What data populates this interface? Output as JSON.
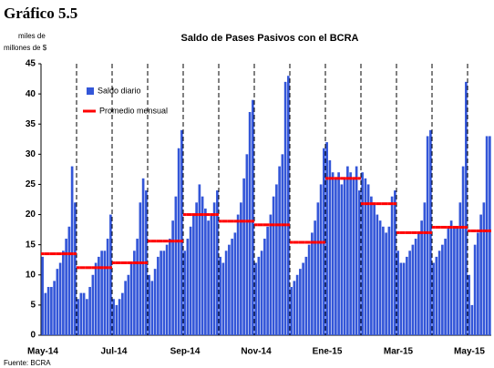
{
  "heading": "Gráfico 5.5",
  "source": "Fuente: BCRA",
  "chart_data": {
    "type": "bar",
    "title": "Saldo de Pases Pasivos con el BCRA",
    "y_label_lines": [
      "miles de",
      "millones de $"
    ],
    "categories": [
      "May-14",
      null,
      null,
      null,
      null,
      null,
      null,
      null,
      null,
      null,
      null,
      null,
      null,
      null,
      null,
      null,
      null,
      null,
      null,
      null,
      null,
      null,
      null,
      null,
      "Jul-14",
      null,
      null,
      null,
      null,
      null,
      null,
      null,
      null,
      null,
      null,
      null,
      null,
      null,
      null,
      null,
      null,
      null,
      null,
      null,
      null,
      null,
      null,
      null,
      "Sep-14",
      null,
      null,
      null,
      null,
      null,
      null,
      null,
      null,
      null,
      null,
      null,
      null,
      null,
      null,
      null,
      null,
      null,
      null,
      null,
      null,
      null,
      null,
      null,
      "Nov-14",
      null,
      null,
      null,
      null,
      null,
      null,
      null,
      null,
      null,
      null,
      null,
      null,
      null,
      null,
      null,
      null,
      null,
      null,
      null,
      null,
      null,
      null,
      null,
      "Ene-15",
      null,
      null,
      null,
      null,
      null,
      null,
      null,
      null,
      null,
      null,
      null,
      null,
      null,
      null,
      null,
      null,
      null,
      null,
      null,
      null,
      null,
      null,
      null,
      "Mar-15",
      null,
      null,
      null,
      null,
      null,
      null,
      null,
      null,
      null,
      null,
      null,
      null,
      null,
      null,
      null,
      null,
      null,
      null,
      null,
      null,
      null,
      null,
      null,
      "May-15",
      null,
      null,
      null,
      null,
      null,
      null,
      null
    ],
    "series": [
      {
        "name": "Saldo diario",
        "color": "#3356d8",
        "values": [
          13,
          7,
          8,
          8,
          9,
          11,
          12,
          14,
          16,
          18,
          28,
          22,
          6,
          7,
          7,
          6,
          8,
          10,
          12,
          13,
          14,
          14,
          16,
          20,
          6,
          5,
          6,
          7,
          9,
          10,
          12,
          14,
          16,
          22,
          26,
          24,
          10,
          9,
          11,
          13,
          14,
          14,
          15,
          16,
          19,
          23,
          31,
          34,
          14,
          16,
          18,
          20,
          22,
          25,
          23,
          21,
          19,
          20,
          22,
          24,
          13,
          12,
          14,
          15,
          16,
          17,
          20,
          22,
          26,
          30,
          37,
          39,
          12,
          13,
          14,
          16,
          18,
          20,
          23,
          25,
          28,
          30,
          42,
          43,
          8,
          9,
          10,
          11,
          12,
          13,
          15,
          17,
          19,
          22,
          25,
          31,
          32,
          29,
          27,
          26,
          27,
          25,
          26,
          28,
          27,
          26,
          28,
          24,
          27,
          26,
          25,
          23,
          22,
          20,
          19,
          18,
          17,
          18,
          23,
          24,
          14,
          12,
          12,
          13,
          14,
          15,
          16,
          17,
          19,
          22,
          33,
          34,
          12,
          13,
          14,
          15,
          16,
          18,
          19,
          18,
          18,
          22,
          28,
          42,
          10,
          5,
          15,
          17,
          20,
          22,
          33,
          33
        ]
      },
      {
        "name": "Promedio mensual",
        "color": "#ff0000",
        "type": "step",
        "values": [
          13.5,
          13.5,
          13.5,
          13.5,
          13.5,
          13.5,
          13.5,
          13.5,
          13.5,
          13.5,
          13.5,
          13.5,
          11.2,
          11.2,
          11.2,
          11.2,
          11.2,
          11.2,
          11.2,
          11.2,
          11.2,
          11.2,
          11.2,
          11.2,
          12,
          12,
          12,
          12,
          12,
          12,
          12,
          12,
          12,
          12,
          12,
          12,
          15.6,
          15.6,
          15.6,
          15.6,
          15.6,
          15.6,
          15.6,
          15.6,
          15.6,
          15.6,
          15.6,
          15.6,
          20,
          20,
          20,
          20,
          20,
          20,
          20,
          20,
          20,
          20,
          20,
          20,
          18.9,
          18.9,
          18.9,
          18.9,
          18.9,
          18.9,
          18.9,
          18.9,
          18.9,
          18.9,
          18.9,
          18.9,
          18.3,
          18.3,
          18.3,
          18.3,
          18.3,
          18.3,
          18.3,
          18.3,
          18.3,
          18.3,
          18.3,
          18.3,
          15.4,
          15.4,
          15.4,
          15.4,
          15.4,
          15.4,
          15.4,
          15.4,
          15.4,
          15.4,
          15.4,
          15.4,
          26,
          26,
          26,
          26,
          26,
          26,
          26,
          26,
          26,
          26,
          26,
          26,
          21.8,
          21.8,
          21.8,
          21.8,
          21.8,
          21.8,
          21.8,
          21.8,
          21.8,
          21.8,
          21.8,
          21.8,
          17,
          17,
          17,
          17,
          17,
          17,
          17,
          17,
          17,
          17,
          17,
          17,
          17.9,
          17.9,
          17.9,
          17.9,
          17.9,
          17.9,
          17.9,
          17.9,
          17.9,
          17.9,
          17.9,
          17.9,
          17.3,
          17.3,
          17.3,
          17.3,
          17.3,
          17.3,
          17.3,
          17.3
        ]
      }
    ],
    "ylim": [
      0,
      45
    ],
    "yticks": [
      0,
      5,
      10,
      15,
      20,
      25,
      30,
      35,
      40,
      45
    ],
    "legend": "top-left"
  }
}
